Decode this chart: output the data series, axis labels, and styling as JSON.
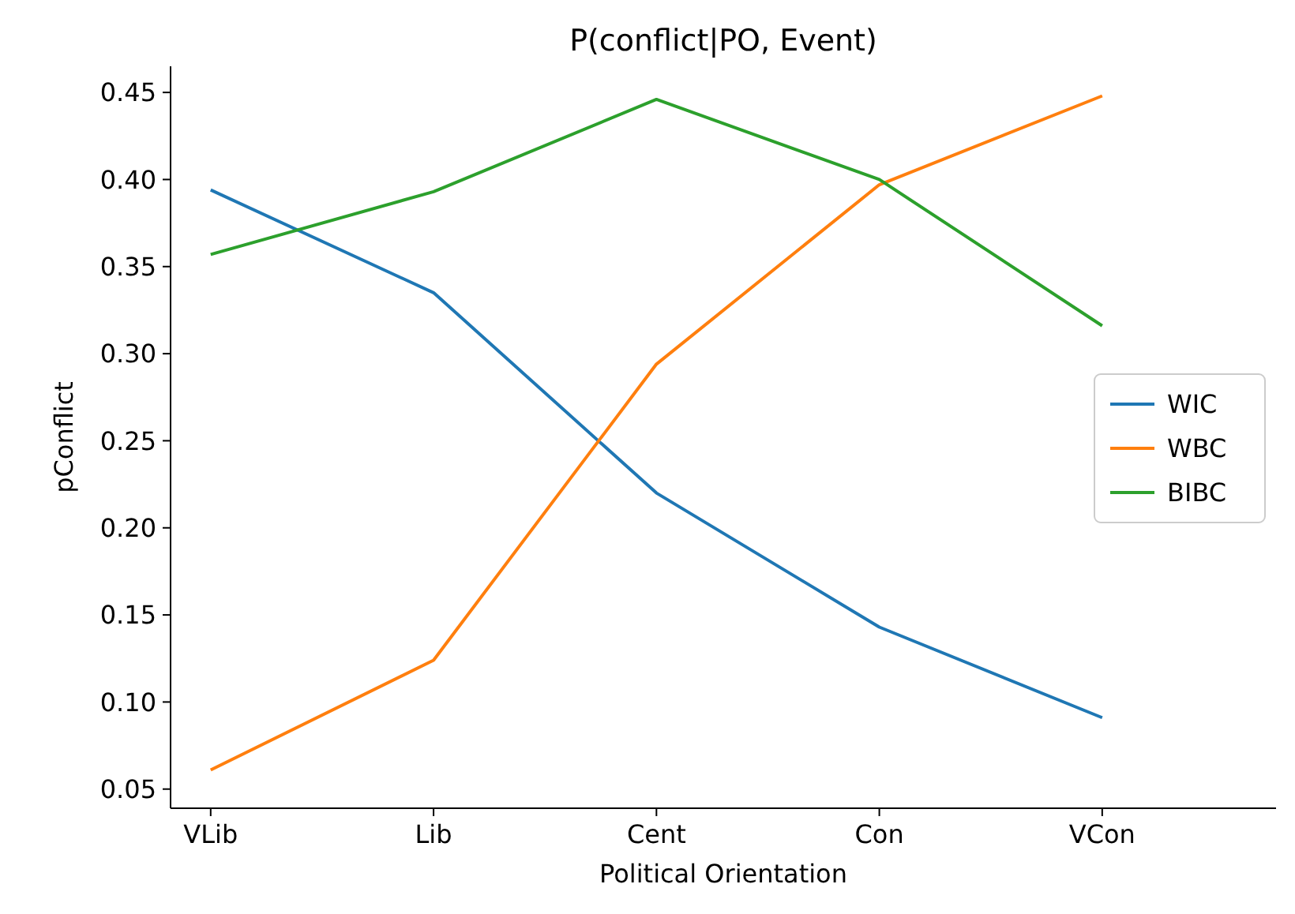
{
  "chart_data": {
    "type": "line",
    "title": "P(conflict|PO, Event)",
    "xlabel": "Political Orientation",
    "ylabel": "pConflict",
    "categories": [
      "VLib",
      "Lib",
      "Cent",
      "Con",
      "VCon"
    ],
    "series": [
      {
        "name": "WIC",
        "color": "#1f77b4",
        "values": [
          0.394,
          0.335,
          0.22,
          0.143,
          0.091
        ]
      },
      {
        "name": "WBC",
        "color": "#ff7f0e",
        "values": [
          0.061,
          0.124,
          0.294,
          0.397,
          0.448
        ]
      },
      {
        "name": "BIBC",
        "color": "#2ca02c",
        "values": [
          0.357,
          0.393,
          0.446,
          0.4,
          0.316
        ]
      }
    ],
    "ylim": [
      0.039,
      0.465
    ],
    "yticks": [
      {
        "value": 0.05,
        "label": "0.05"
      },
      {
        "value": 0.1,
        "label": "0.10"
      },
      {
        "value": 0.15,
        "label": "0.15"
      },
      {
        "value": 0.2,
        "label": "0.20"
      },
      {
        "value": 0.25,
        "label": "0.25"
      },
      {
        "value": 0.3,
        "label": "0.30"
      },
      {
        "value": 0.35,
        "label": "0.35"
      },
      {
        "value": 0.4,
        "label": "0.40"
      },
      {
        "value": 0.45,
        "label": "0.45"
      }
    ],
    "grid": false,
    "legend": "right",
    "marker": "none",
    "line_style": "solid"
  }
}
